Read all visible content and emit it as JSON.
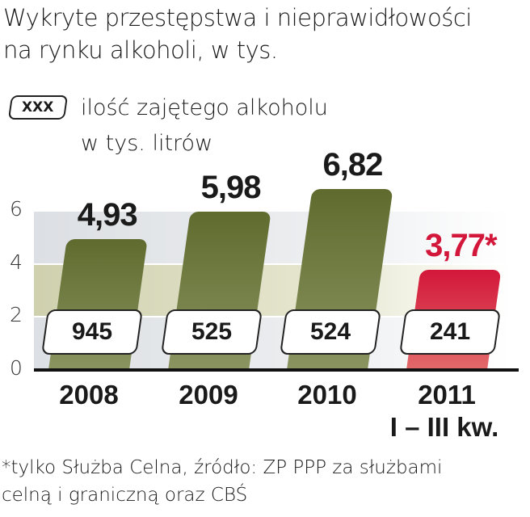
{
  "chart_data": {
    "type": "bar",
    "title_lines": [
      "Wykryte przestępstwa i nieprawidłowości",
      "na rynku alkoholi, w tys."
    ],
    "legend": {
      "box_label": "XXX",
      "text_lines": [
        "ilość zajętego alkoholu",
        "w tys. litrów"
      ]
    },
    "categories": [
      "2008",
      "2009",
      "2010",
      "2011"
    ],
    "category_sub": "I – III kw.",
    "values": [
      4.93,
      5.98,
      6.82,
      3.77
    ],
    "value_labels": [
      "4,93",
      "5,98",
      "6,82",
      "3,77*"
    ],
    "seized_alcohol": [
      "945",
      "525",
      "524",
      "241"
    ],
    "colors": [
      "#5f6b2e",
      "#5f6b2e",
      "#5f6b2e",
      "#d3173a"
    ],
    "label_colors": [
      "#1a1a1a",
      "#1a1a1a",
      "#1a1a1a",
      "#d3173a"
    ],
    "yticks": [
      "0",
      "2",
      "4",
      "6"
    ],
    "ylim": [
      0,
      6
    ],
    "footnote_lines": [
      "*tylko Służba Celna, źródło: ZP PPP za służbami",
      "celną i graniczną oraz CBŚ"
    ]
  }
}
